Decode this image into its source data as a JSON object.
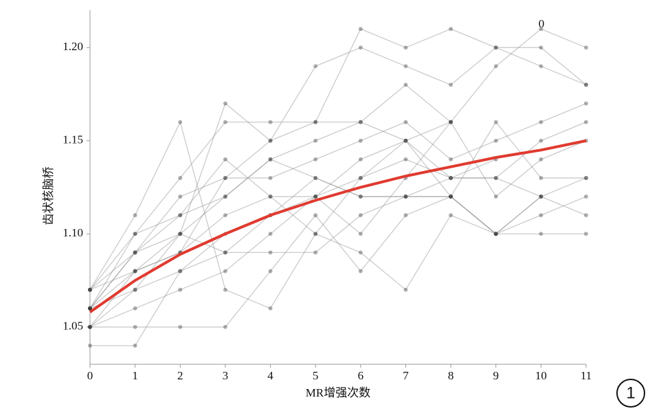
{
  "chart_data": {
    "type": "line",
    "xlabel": "MR增强次数",
    "ylabel": "齿状核脑桥",
    "annotations": [
      "0"
    ],
    "figure_label": "1",
    "x": [
      0,
      1,
      2,
      3,
      4,
      5,
      6,
      7,
      8,
      9,
      10,
      11
    ],
    "xlim": [
      0,
      11
    ],
    "xticks": [
      0,
      1,
      2,
      3,
      4,
      5,
      6,
      7,
      8,
      9,
      10,
      11
    ],
    "ylim": [
      1.03,
      1.22
    ],
    "yticks": [
      1.05,
      {
        "value": 1.1,
        "label": "1.10"
      },
      1.15,
      {
        "value": 1.2,
        "label": "1.20"
      }
    ],
    "grid": false,
    "series": [
      {
        "color": "#8c8c8c",
        "values": [
          1.07,
          1.09,
          1.1,
          1.12,
          1.14,
          1.15,
          1.16,
          1.18,
          1.16,
          1.19,
          1.21,
          1.2
        ]
      },
      {
        "color": "#8c8c8c",
        "values": [
          1.05,
          1.08,
          1.09,
          1.13,
          1.15,
          1.16,
          1.21,
          1.2,
          1.21,
          1.2,
          1.2,
          1.18
        ]
      },
      {
        "color": "#8c8c8c",
        "values": [
          1.06,
          1.07,
          1.08,
          1.1,
          1.11,
          1.12,
          1.13,
          1.14,
          1.13,
          1.13,
          1.12,
          1.13
        ]
      },
      {
        "color": "#8c8c8c",
        "values": [
          1.04,
          1.04,
          1.08,
          1.09,
          1.09,
          1.09,
          1.11,
          1.12,
          1.12,
          1.1,
          1.11,
          1.12
        ]
      },
      {
        "color": "#8c8c8c",
        "values": [
          1.06,
          1.1,
          1.11,
          1.12,
          1.14,
          1.13,
          1.12,
          1.12,
          1.12,
          1.1,
          1.1,
          1.1
        ]
      },
      {
        "color": "#8c8c8c",
        "values": [
          1.05,
          1.06,
          1.07,
          1.08,
          1.1,
          1.12,
          1.14,
          1.15,
          1.16,
          1.12,
          1.14,
          1.15
        ]
      },
      {
        "color": "#8c8c8c",
        "values": [
          1.07,
          1.11,
          1.16,
          1.07,
          1.06,
          1.1,
          1.09,
          1.07,
          1.11,
          1.1,
          1.12,
          null
        ]
      },
      {
        "color": "#8c8c8c",
        "values": [
          1.06,
          1.09,
          1.12,
          1.13,
          1.13,
          1.14,
          1.15,
          1.16,
          1.14,
          1.15,
          1.16,
          1.17
        ]
      },
      {
        "color": "#8c8c8c",
        "values": [
          1.05,
          1.05,
          1.05,
          1.05,
          1.08,
          1.11,
          1.08,
          1.11,
          1.12,
          1.16,
          1.13,
          1.13
        ]
      },
      {
        "color": "#8c8c8c",
        "values": [
          1.07,
          1.08,
          1.09,
          1.11,
          1.12,
          1.12,
          1.1,
          1.13,
          1.16,
          null,
          null,
          null
        ]
      },
      {
        "color": "#8c8c8c",
        "values": [
          1.06,
          1.08,
          1.1,
          1.17,
          1.15,
          1.19,
          1.2,
          1.19,
          1.18,
          1.2,
          1.19,
          1.18
        ]
      },
      {
        "color": "#8c8c8c",
        "values": [
          1.05,
          1.07,
          1.1,
          1.09,
          1.11,
          1.13,
          1.12,
          1.12,
          1.13,
          1.14,
          null,
          null
        ]
      },
      {
        "color": "#8c8c8c",
        "values": [
          1.06,
          1.09,
          1.11,
          1.14,
          1.12,
          1.1,
          1.13,
          1.15,
          1.12,
          1.1,
          1.12,
          1.11
        ]
      },
      {
        "color": "#8c8c8c",
        "values": [
          1.07,
          1.1,
          1.13,
          1.16,
          1.16,
          1.16,
          1.16,
          1.15,
          1.13,
          1.13,
          1.15,
          1.16
        ]
      },
      {
        "color": "#e03a2f",
        "values": [
          1.058,
          1.075,
          1.089,
          1.1,
          1.11,
          1.118,
          1.125,
          1.131,
          1.136,
          1.141,
          1.145,
          1.15
        ]
      }
    ]
  }
}
